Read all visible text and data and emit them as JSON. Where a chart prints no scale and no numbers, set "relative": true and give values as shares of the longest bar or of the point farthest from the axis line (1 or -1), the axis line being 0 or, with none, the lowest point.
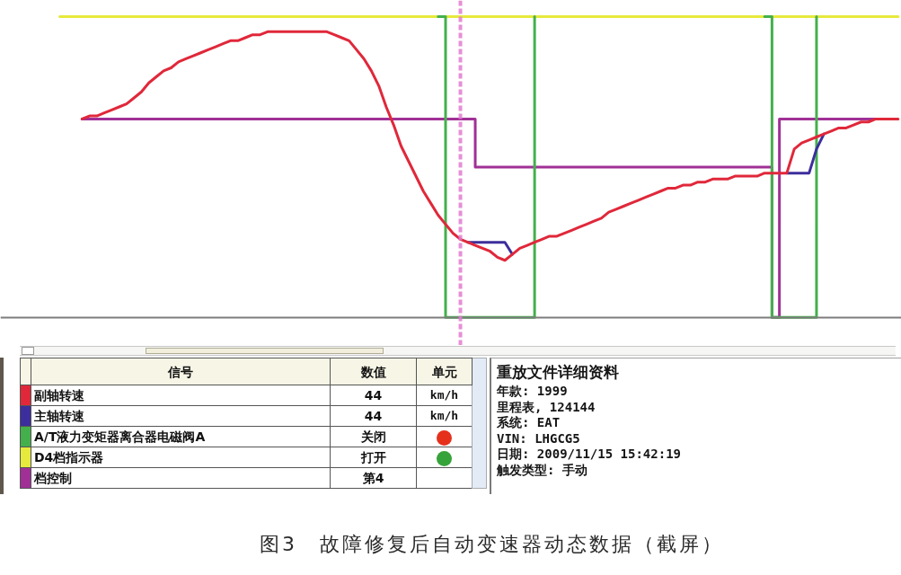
{
  "chart_data": {
    "type": "line",
    "relative": true,
    "legend": "bottom left",
    "legend_title": "信号",
    "categories": [
      null,
      null,
      null,
      null,
      null,
      null,
      null,
      null,
      null,
      null,
      null,
      null,
      null,
      null,
      null,
      null,
      null,
      null,
      null,
      null,
      null,
      null,
      null,
      null,
      null,
      null,
      null,
      null,
      null,
      null,
      null,
      null,
      null,
      null,
      null,
      null,
      null,
      null,
      null,
      null,
      null,
      null,
      null,
      null,
      null,
      null,
      null,
      null,
      null,
      null,
      null,
      null,
      null,
      null,
      null,
      null,
      null,
      null,
      null,
      null,
      null,
      null,
      null,
      null,
      null,
      null,
      null,
      null,
      null,
      null,
      null,
      null,
      null,
      null,
      null,
      null,
      null,
      null,
      null,
      null,
      null,
      null,
      null,
      null,
      null,
      null,
      null,
      null,
      null,
      null,
      null,
      null,
      null,
      null,
      null,
      null,
      null,
      null,
      null,
      null,
      null,
      null,
      null,
      null,
      null,
      null,
      null,
      null,
      null,
      null,
      null,
      null,
      null,
      null
    ],
    "series": [
      {
        "name": "副轴转速",
        "color": "#e0283a",
        "values": [
          null,
          null,
          null,
          0.66,
          0.67,
          0.67,
          0.68,
          0.69,
          0.7,
          0.71,
          0.73,
          0.75,
          0.78,
          0.8,
          0.82,
          0.83,
          0.85,
          0.86,
          0.87,
          0.88,
          0.89,
          0.9,
          0.91,
          0.92,
          0.92,
          0.93,
          0.94,
          0.94,
          0.95,
          0.95,
          0.95,
          0.95,
          0.95,
          0.95,
          0.95,
          0.95,
          0.95,
          0.94,
          0.93,
          0.92,
          0.89,
          0.86,
          0.82,
          0.77,
          0.7,
          0.64,
          0.57,
          0.52,
          0.47,
          0.42,
          0.38,
          0.34,
          0.31,
          0.28,
          0.26,
          0.25,
          0.24,
          0.23,
          0.22,
          0.2,
          0.19,
          0.21,
          0.23,
          0.24,
          0.25,
          0.26,
          0.27,
          0.27,
          0.28,
          0.29,
          0.3,
          0.31,
          0.32,
          0.33,
          0.35,
          0.36,
          0.37,
          0.38,
          0.39,
          0.4,
          0.41,
          0.42,
          0.43,
          0.43,
          0.44,
          0.44,
          0.45,
          0.45,
          0.46,
          0.46,
          0.46,
          0.47,
          0.47,
          0.47,
          0.47,
          0.48,
          0.48,
          0.48,
          0.48,
          0.56,
          0.58,
          0.59,
          0.6,
          0.61,
          0.62,
          0.63,
          0.63,
          0.64,
          0.65,
          0.65,
          0.66,
          0.66,
          0.66,
          0.66
        ]
      },
      {
        "name": "主轴转速",
        "color": "#3c2e9c",
        "values": [
          null,
          null,
          null,
          null,
          null,
          null,
          null,
          null,
          null,
          null,
          null,
          null,
          null,
          null,
          null,
          null,
          null,
          null,
          null,
          null,
          null,
          null,
          null,
          null,
          null,
          null,
          null,
          null,
          null,
          null,
          null,
          null,
          null,
          null,
          null,
          null,
          null,
          null,
          null,
          null,
          null,
          null,
          null,
          null,
          null,
          null,
          null,
          null,
          null,
          null,
          null,
          null,
          null,
          null,
          null,
          0.25,
          0.25,
          0.25,
          0.25,
          0.25,
          0.25,
          0.21,
          null,
          null,
          null,
          null,
          null,
          null,
          null,
          null,
          null,
          null,
          null,
          null,
          null,
          null,
          null,
          null,
          null,
          null,
          null,
          null,
          null,
          null,
          null,
          null,
          null,
          null,
          null,
          null,
          null,
          null,
          null,
          null,
          null,
          null,
          null,
          null,
          0.48,
          0.48,
          0.48,
          0.48,
          0.56,
          0.61,
          null,
          null,
          null,
          null,
          null,
          null,
          null,
          null,
          null,
          null
        ]
      },
      {
        "name": "A/T液力变矩器离合器电磁阀A",
        "color": "#44b04c",
        "type": "step",
        "values": [
          null,
          null,
          null,
          null,
          null,
          null,
          null,
          null,
          null,
          null,
          null,
          null,
          null,
          null,
          null,
          null,
          null,
          null,
          null,
          null,
          null,
          null,
          null,
          null,
          null,
          null,
          null,
          null,
          null,
          null,
          null,
          null,
          null,
          null,
          null,
          null,
          null,
          null,
          null,
          null,
          null,
          null,
          null,
          null,
          null,
          null,
          null,
          null,
          null,
          null,
          null,
          1,
          0,
          0,
          0,
          0,
          0,
          0,
          0,
          0,
          0,
          0,
          0,
          0,
          1,
          null,
          null,
          null,
          null,
          null,
          null,
          null,
          null,
          null,
          null,
          null,
          null,
          null,
          null,
          null,
          null,
          null,
          null,
          null,
          null,
          null,
          null,
          null,
          null,
          null,
          null,
          null,
          null,
          null,
          null,
          1,
          0,
          0,
          0,
          0,
          0,
          0,
          1,
          null,
          null,
          null,
          null,
          null,
          null,
          null,
          null,
          null,
          null,
          null
        ]
      },
      {
        "name": "D4档指示器",
        "color": "#e6ea3c",
        "type": "step",
        "values": [
          1,
          1,
          1,
          1,
          1,
          1,
          1,
          1,
          1,
          1,
          1,
          1,
          1,
          1,
          1,
          1,
          1,
          1,
          1,
          1,
          1,
          1,
          1,
          1,
          1,
          1,
          1,
          1,
          1,
          1,
          1,
          1,
          1,
          1,
          1,
          1,
          1,
          1,
          1,
          1,
          1,
          1,
          1,
          1,
          1,
          1,
          1,
          1,
          1,
          1,
          1,
          1,
          1,
          1,
          1,
          1,
          1,
          1,
          1,
          1,
          1,
          1,
          1,
          1,
          1,
          1,
          1,
          1,
          1,
          1,
          1,
          1,
          1,
          1,
          1,
          1,
          1,
          1,
          1,
          1,
          1,
          1,
          1,
          1,
          1,
          1,
          1,
          1,
          1,
          1,
          1,
          1,
          1,
          1,
          1,
          1,
          1,
          1,
          1,
          1,
          1,
          1,
          1,
          1,
          1,
          1,
          1,
          1,
          1,
          1,
          1,
          1,
          1,
          1
        ]
      },
      {
        "name": "档控制",
        "color": "#a03096",
        "type": "step",
        "values": [
          null,
          null,
          null,
          0.66,
          0.66,
          0.66,
          0.66,
          0.66,
          0.66,
          0.66,
          0.66,
          0.66,
          0.66,
          0.66,
          0.66,
          0.66,
          0.66,
          0.66,
          0.66,
          0.66,
          0.66,
          0.66,
          0.66,
          0.66,
          0.66,
          0.66,
          0.66,
          0.66,
          0.66,
          0.66,
          0.66,
          0.66,
          0.66,
          0.66,
          0.66,
          0.66,
          0.66,
          0.66,
          0.66,
          0.66,
          0.66,
          0.66,
          0.66,
          0.66,
          0.66,
          0.66,
          0.66,
          0.66,
          0.66,
          0.66,
          0.66,
          0.66,
          0.66,
          0.66,
          0.66,
          0.66,
          0.5,
          0.5,
          0.5,
          0.5,
          0.5,
          0.5,
          0.5,
          0.5,
          0.5,
          0.5,
          0.5,
          0.5,
          0.5,
          0.5,
          0.5,
          0.5,
          0.5,
          0.5,
          0.5,
          0.5,
          0.5,
          0.5,
          0.5,
          0.5,
          0.5,
          0.5,
          0.5,
          0.5,
          0.5,
          0.5,
          0.5,
          0.5,
          0.5,
          0.5,
          0.5,
          0.5,
          0.5,
          0.5,
          0.5,
          0.5,
          0,
          0.66,
          0.66,
          0.66,
          0.66,
          0.66,
          0.66,
          0.66,
          0.66,
          0.66,
          0.66,
          0.66,
          0.66,
          0.66,
          0.66,
          0.66,
          null,
          null
        ]
      }
    ],
    "annotations": [
      "数值",
      "单元",
      "44",
      "km/h",
      "44",
      "km/h",
      "关闭",
      "打开",
      "第4",
      "重放文件详细资料",
      "年款: 1999",
      "里程表, 124144",
      "系统: EAT",
      "VIN: LHGCG5",
      "日期: 2009/11/15 15:42:19",
      "触发类型: 手动",
      "图3　故障修复后自动变速器动态数据（截屏）"
    ]
  }
}
